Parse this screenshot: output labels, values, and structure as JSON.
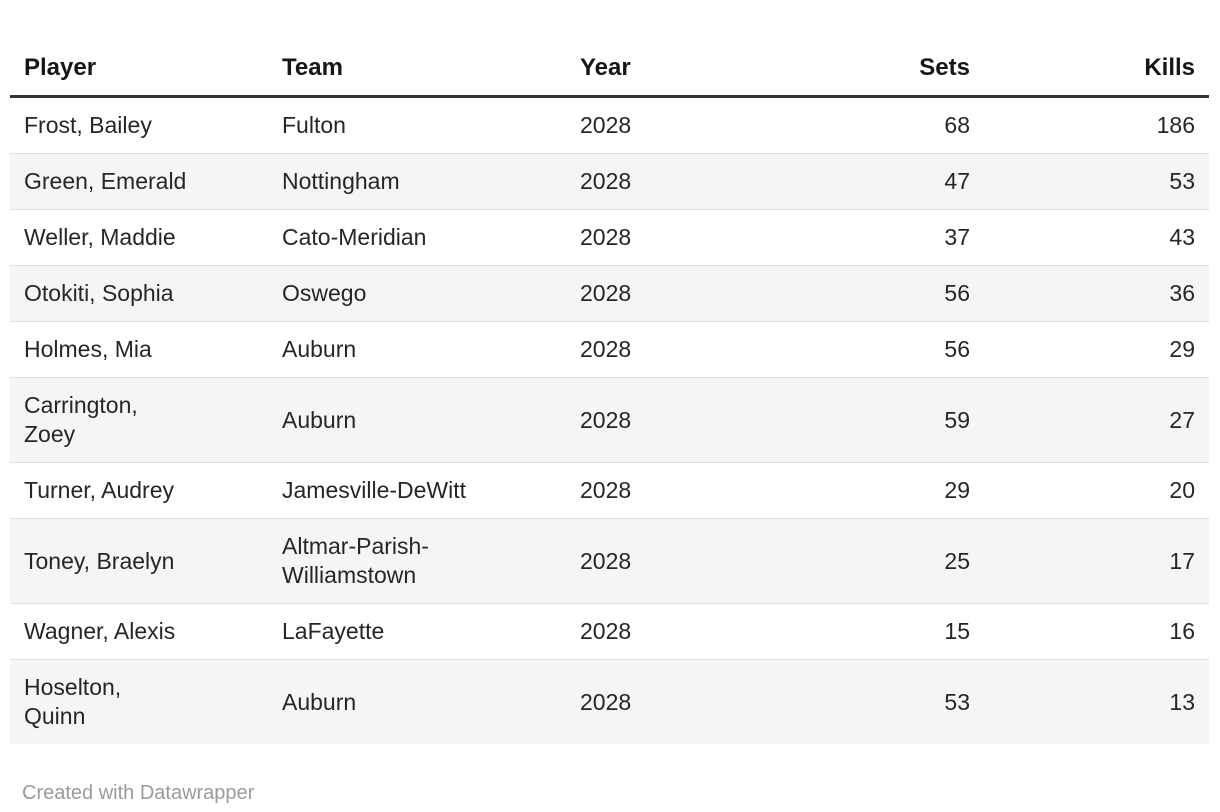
{
  "chart_data": {
    "type": "table",
    "columns": [
      "Player",
      "Team",
      "Year",
      "Sets",
      "Kills"
    ],
    "column_align": [
      "left",
      "left",
      "left",
      "right",
      "right"
    ],
    "rows": [
      [
        "Frost, Bailey",
        "Fulton",
        2028,
        68,
        186
      ],
      [
        "Green, Emerald",
        "Nottingham",
        2028,
        47,
        53
      ],
      [
        "Weller, Maddie",
        "Cato-Meridian",
        2028,
        37,
        43
      ],
      [
        "Otokiti, Sophia",
        "Oswego",
        2028,
        56,
        36
      ],
      [
        "Holmes, Mia",
        "Auburn",
        2028,
        56,
        29
      ],
      [
        "Carrington, Zoey",
        "Auburn",
        2028,
        59,
        27
      ],
      [
        "Turner, Audrey",
        "Jamesville-DeWitt",
        2028,
        29,
        20
      ],
      [
        "Toney, Braelyn",
        "Altmar-Parish-Williamstown",
        2028,
        25,
        17
      ],
      [
        "Wagner, Alexis",
        "LaFayette",
        2028,
        15,
        16
      ],
      [
        "Hoselton, Quinn",
        "Auburn",
        2028,
        53,
        13
      ]
    ],
    "title": "",
    "legend": "none",
    "grid": "horizontal-row-dividers",
    "zebra_striping": true
  },
  "header": {
    "player": "Player",
    "team": "Team",
    "year": "Year",
    "sets": "Sets",
    "kills": "Kills"
  },
  "rows_display": [
    {
      "player": "Frost, Bailey",
      "team": "Fulton",
      "year": "2028",
      "sets": "68",
      "kills": "186"
    },
    {
      "player": "Green, Emerald",
      "team": "Nottingham",
      "year": "2028",
      "sets": "47",
      "kills": "53"
    },
    {
      "player": "Weller, Maddie",
      "team": "Cato-Meridian",
      "year": "2028",
      "sets": "37",
      "kills": "43"
    },
    {
      "player": "Otokiti, Sophia",
      "team": "Oswego",
      "year": "2028",
      "sets": "56",
      "kills": "36"
    },
    {
      "player": "Holmes, Mia",
      "team": "Auburn",
      "year": "2028",
      "sets": "56",
      "kills": "29"
    },
    {
      "player": "Carrington,\nZoey",
      "team": "Auburn",
      "year": "2028",
      "sets": "59",
      "kills": "27"
    },
    {
      "player": "Turner, Audrey",
      "team": "Jamesville-DeWitt",
      "year": "2028",
      "sets": "29",
      "kills": "20"
    },
    {
      "player": "Toney, Braelyn",
      "team": "Altmar-Parish-\nWilliamstown",
      "year": "2028",
      "sets": "25",
      "kills": "17"
    },
    {
      "player": "Wagner, Alexis",
      "team": "LaFayette",
      "year": "2028",
      "sets": "15",
      "kills": "16"
    },
    {
      "player": "Hoselton,\nQuinn",
      "team": "Auburn",
      "year": "2028",
      "sets": "53",
      "kills": "13"
    }
  ],
  "footer": {
    "credit_label": "Created with Datawrapper"
  },
  "colors": {
    "header_text": "#161616",
    "header_rule": "#333333",
    "body_text": "#262626",
    "zebra_stripe": "#f5f5f5",
    "row_divider": "#e0e0e0",
    "footer_text": "#9a9a9a",
    "background": "#ffffff"
  }
}
